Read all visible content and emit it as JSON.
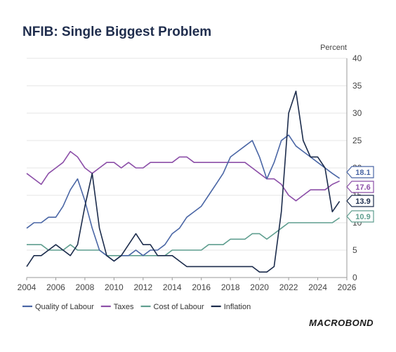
{
  "chart_data": {
    "type": "line",
    "title": "NFIB: Single Biggest Problem",
    "unit_label": "Percent",
    "ylim": [
      0,
      40
    ],
    "y_ticks": [
      0,
      5,
      10,
      15,
      20,
      25,
      30,
      35,
      40
    ],
    "xlim": [
      2004,
      2026
    ],
    "x_ticks": [
      2004,
      2006,
      2008,
      2010,
      2012,
      2014,
      2016,
      2018,
      2020,
      2022,
      2024,
      2026
    ],
    "x_tick_labels": [
      "2004",
      "2006",
      "2008",
      "2010",
      "2012",
      "2014",
      "2016",
      "2018",
      "2020",
      "2022",
      "2024",
      "2026"
    ],
    "legend_position": "bottom-left",
    "series": [
      {
        "name": "Quality of Labour",
        "color": "#4a66a5",
        "last_value_label": "18.1",
        "points": [
          [
            2004.0,
            9
          ],
          [
            2004.5,
            10
          ],
          [
            2005.0,
            10
          ],
          [
            2005.5,
            11
          ],
          [
            2006.0,
            11
          ],
          [
            2006.5,
            13
          ],
          [
            2007.0,
            16
          ],
          [
            2007.5,
            18
          ],
          [
            2008.0,
            14
          ],
          [
            2008.5,
            9
          ],
          [
            2009.0,
            5
          ],
          [
            2009.5,
            4
          ],
          [
            2010.0,
            3
          ],
          [
            2010.5,
            4
          ],
          [
            2011.0,
            4
          ],
          [
            2011.5,
            5
          ],
          [
            2012.0,
            4
          ],
          [
            2012.5,
            5
          ],
          [
            2013.0,
            5
          ],
          [
            2013.5,
            6
          ],
          [
            2014.0,
            8
          ],
          [
            2014.5,
            9
          ],
          [
            2015.0,
            11
          ],
          [
            2015.5,
            12
          ],
          [
            2016.0,
            13
          ],
          [
            2016.5,
            15
          ],
          [
            2017.0,
            17
          ],
          [
            2017.5,
            19
          ],
          [
            2018.0,
            22
          ],
          [
            2018.5,
            23
          ],
          [
            2019.0,
            24
          ],
          [
            2019.5,
            25
          ],
          [
            2020.0,
            22
          ],
          [
            2020.5,
            18
          ],
          [
            2021.0,
            21
          ],
          [
            2021.5,
            25
          ],
          [
            2022.0,
            26
          ],
          [
            2022.5,
            24
          ],
          [
            2023.0,
            23
          ],
          [
            2023.5,
            22
          ],
          [
            2024.0,
            21
          ],
          [
            2024.5,
            20
          ],
          [
            2025.0,
            19
          ],
          [
            2025.5,
            18.1
          ]
        ]
      },
      {
        "name": "Taxes",
        "color": "#8c4fa8",
        "last_value_label": "17.6",
        "points": [
          [
            2004.0,
            19
          ],
          [
            2004.5,
            18
          ],
          [
            2005.0,
            17
          ],
          [
            2005.5,
            19
          ],
          [
            2006.0,
            20
          ],
          [
            2006.5,
            21
          ],
          [
            2007.0,
            23
          ],
          [
            2007.5,
            22
          ],
          [
            2008.0,
            20
          ],
          [
            2008.5,
            19
          ],
          [
            2009.0,
            20
          ],
          [
            2009.5,
            21
          ],
          [
            2010.0,
            21
          ],
          [
            2010.5,
            20
          ],
          [
            2011.0,
            21
          ],
          [
            2011.5,
            20
          ],
          [
            2012.0,
            20
          ],
          [
            2012.5,
            21
          ],
          [
            2013.0,
            21
          ],
          [
            2013.5,
            21
          ],
          [
            2014.0,
            21
          ],
          [
            2014.5,
            22
          ],
          [
            2015.0,
            22
          ],
          [
            2015.5,
            21
          ],
          [
            2016.0,
            21
          ],
          [
            2016.5,
            21
          ],
          [
            2017.0,
            21
          ],
          [
            2017.5,
            21
          ],
          [
            2018.0,
            21
          ],
          [
            2018.5,
            21
          ],
          [
            2019.0,
            21
          ],
          [
            2019.5,
            20
          ],
          [
            2020.0,
            19
          ],
          [
            2020.5,
            18
          ],
          [
            2021.0,
            18
          ],
          [
            2021.5,
            17
          ],
          [
            2022.0,
            15
          ],
          [
            2022.5,
            14
          ],
          [
            2023.0,
            15
          ],
          [
            2023.5,
            16
          ],
          [
            2024.0,
            16
          ],
          [
            2024.5,
            16
          ],
          [
            2025.0,
            17
          ],
          [
            2025.5,
            17.6
          ]
        ]
      },
      {
        "name": "Cost of Labour",
        "color": "#5f9e8f",
        "last_value_label": "10.9",
        "points": [
          [
            2004.0,
            6
          ],
          [
            2004.5,
            6
          ],
          [
            2005.0,
            6
          ],
          [
            2005.5,
            5
          ],
          [
            2006.0,
            5
          ],
          [
            2006.5,
            5
          ],
          [
            2007.0,
            6
          ],
          [
            2007.5,
            5
          ],
          [
            2008.0,
            5
          ],
          [
            2008.5,
            5
          ],
          [
            2009.0,
            5
          ],
          [
            2009.5,
            4
          ],
          [
            2010.0,
            4
          ],
          [
            2010.5,
            4
          ],
          [
            2011.0,
            4
          ],
          [
            2011.5,
            4
          ],
          [
            2012.0,
            4
          ],
          [
            2012.5,
            4
          ],
          [
            2013.0,
            4
          ],
          [
            2013.5,
            4
          ],
          [
            2014.0,
            5
          ],
          [
            2014.5,
            5
          ],
          [
            2015.0,
            5
          ],
          [
            2015.5,
            5
          ],
          [
            2016.0,
            5
          ],
          [
            2016.5,
            6
          ],
          [
            2017.0,
            6
          ],
          [
            2017.5,
            6
          ],
          [
            2018.0,
            7
          ],
          [
            2018.5,
            7
          ],
          [
            2019.0,
            7
          ],
          [
            2019.5,
            8
          ],
          [
            2020.0,
            8
          ],
          [
            2020.5,
            7
          ],
          [
            2021.0,
            8
          ],
          [
            2021.5,
            9
          ],
          [
            2022.0,
            10
          ],
          [
            2022.5,
            10
          ],
          [
            2023.0,
            10
          ],
          [
            2023.5,
            10
          ],
          [
            2024.0,
            10
          ],
          [
            2024.5,
            10
          ],
          [
            2025.0,
            10
          ],
          [
            2025.5,
            10.9
          ]
        ]
      },
      {
        "name": "Inflation",
        "color": "#1c2c4c",
        "last_value_label": "13.9",
        "points": [
          [
            2004.0,
            2
          ],
          [
            2004.5,
            4
          ],
          [
            2005.0,
            4
          ],
          [
            2005.5,
            5
          ],
          [
            2006.0,
            6
          ],
          [
            2006.5,
            5
          ],
          [
            2007.0,
            4
          ],
          [
            2007.5,
            6
          ],
          [
            2008.0,
            13
          ],
          [
            2008.5,
            19
          ],
          [
            2009.0,
            9
          ],
          [
            2009.5,
            4
          ],
          [
            2010.0,
            3
          ],
          [
            2010.5,
            4
          ],
          [
            2011.0,
            6
          ],
          [
            2011.5,
            8
          ],
          [
            2012.0,
            6
          ],
          [
            2012.5,
            6
          ],
          [
            2013.0,
            4
          ],
          [
            2013.5,
            4
          ],
          [
            2014.0,
            4
          ],
          [
            2014.5,
            3
          ],
          [
            2015.0,
            2
          ],
          [
            2015.5,
            2
          ],
          [
            2016.0,
            2
          ],
          [
            2016.5,
            2
          ],
          [
            2017.0,
            2
          ],
          [
            2017.5,
            2
          ],
          [
            2018.0,
            2
          ],
          [
            2018.5,
            2
          ],
          [
            2019.0,
            2
          ],
          [
            2019.5,
            2
          ],
          [
            2020.0,
            1
          ],
          [
            2020.5,
            1
          ],
          [
            2021.0,
            2
          ],
          [
            2021.5,
            12
          ],
          [
            2022.0,
            30
          ],
          [
            2022.5,
            34
          ],
          [
            2023.0,
            25
          ],
          [
            2023.5,
            22
          ],
          [
            2024.0,
            22
          ],
          [
            2024.5,
            20
          ],
          [
            2025.0,
            12
          ],
          [
            2025.5,
            13.9
          ]
        ]
      }
    ]
  },
  "branding": {
    "logo_text": "MACROBOND"
  }
}
